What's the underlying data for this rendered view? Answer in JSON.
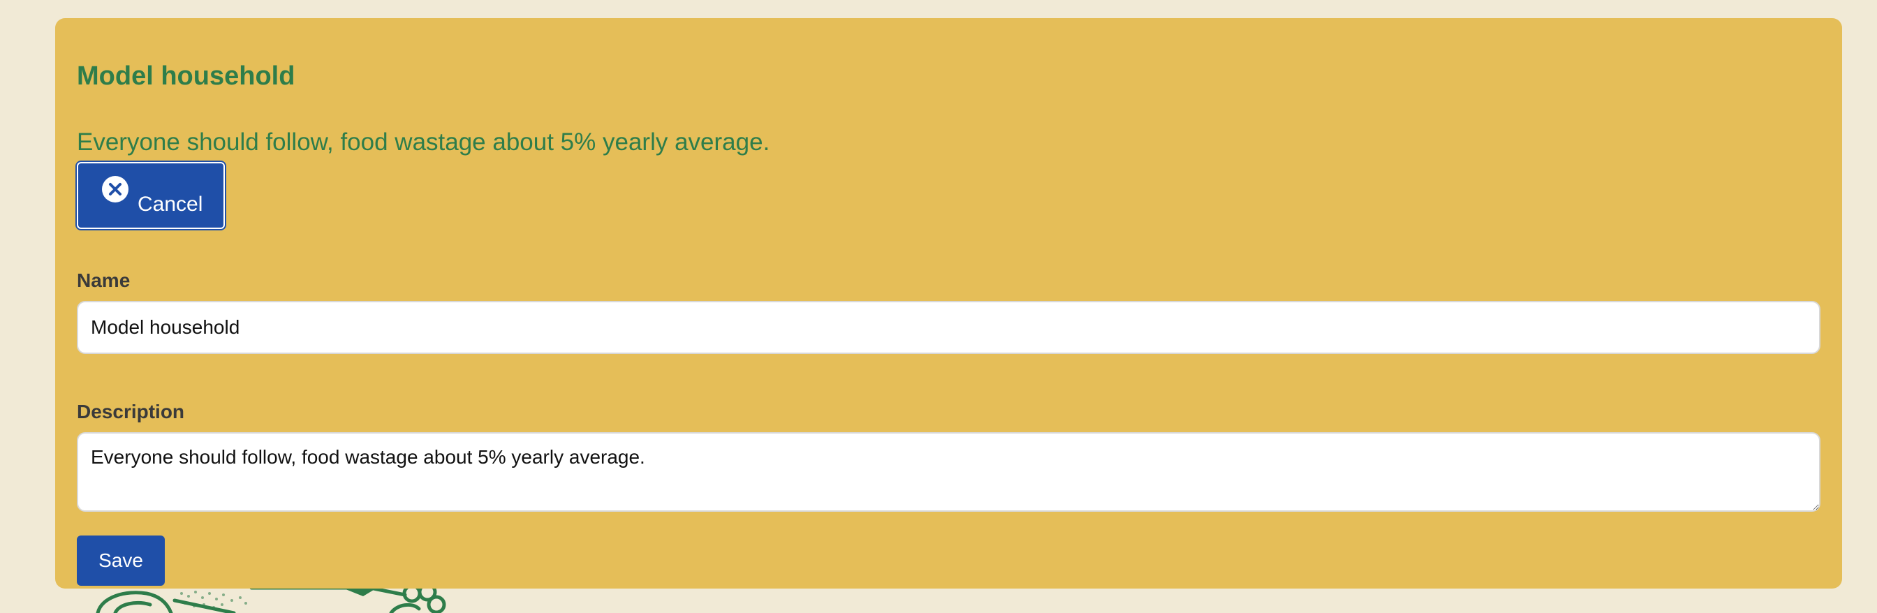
{
  "card": {
    "title": "Model household",
    "description": "Everyone should follow, food wastage about 5% yearly average."
  },
  "buttons": {
    "cancel_label": "Cancel",
    "cancel_icon": "close-circle-icon",
    "save_label": "Save"
  },
  "form": {
    "name_label": "Name",
    "name_value": "Model household",
    "description_label": "Description",
    "description_value": "Everyone should follow, food wastage about 5% yearly average."
  },
  "colors": {
    "background": "#f1ead6",
    "card": "#e5be58",
    "heading": "#2e7d4a",
    "button": "#1f4fa8"
  }
}
